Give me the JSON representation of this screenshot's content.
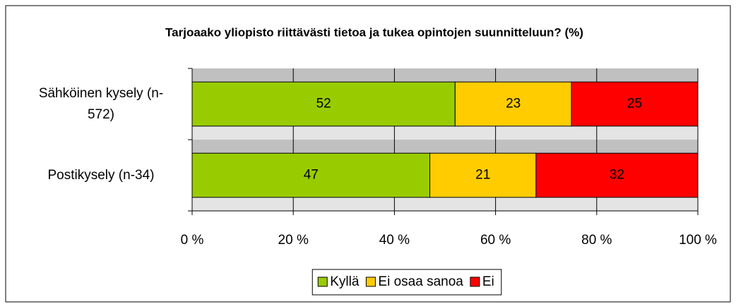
{
  "chart_data": {
    "type": "stacked-bar-horizontal",
    "title": "Tarjoaako yliopisto riittävästi tietoa ja tukea opintojen suunnitteluun? (%)",
    "categories": [
      "Sähköinen kysely (n-572)",
      "Postikysely (n-34)"
    ],
    "series": [
      {
        "name": "Kyllä",
        "color": "#99cc00",
        "values": [
          52,
          47
        ]
      },
      {
        "name": "Ei osaa sanoa",
        "color": "#ffcc00",
        "values": [
          23,
          21
        ]
      },
      {
        "name": "Ei",
        "color": "#ff0000",
        "values": [
          25,
          32
        ]
      }
    ],
    "xlim": [
      0,
      100
    ],
    "xticks": [
      {
        "value": 0,
        "label": "0 %"
      },
      {
        "value": 20,
        "label": "20 %"
      },
      {
        "value": 40,
        "label": "40 %"
      },
      {
        "value": 60,
        "label": "60 %"
      },
      {
        "value": 80,
        "label": "80 %"
      },
      {
        "value": 100,
        "label": "100 %"
      }
    ],
    "grid": true,
    "legend": "bottom"
  }
}
